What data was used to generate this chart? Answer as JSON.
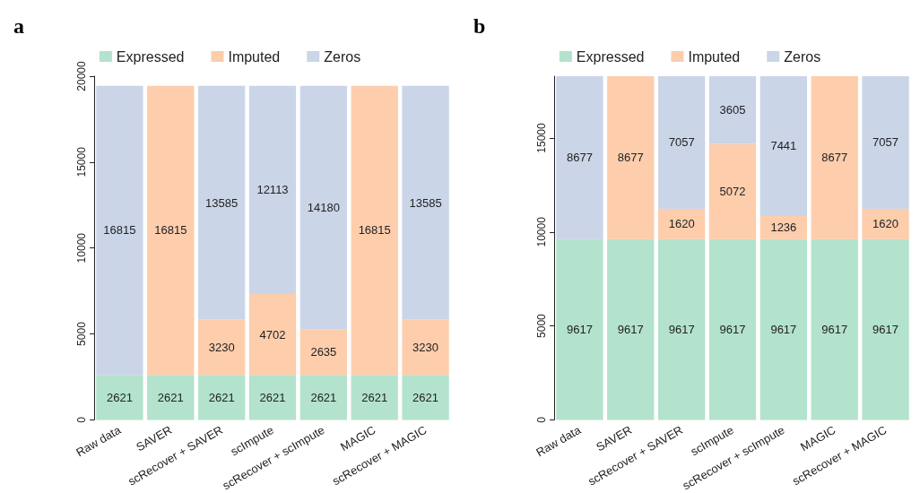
{
  "chart_data": [
    {
      "type": "bar",
      "title": "a",
      "stacked": true,
      "legend": "top",
      "categories": [
        "Raw data",
        "SAVER",
        "scRecover + SAVER",
        "scImpute",
        "scRecover + scImpute",
        "MAGIC",
        "scRecover + MAGIC"
      ],
      "ylim": [
        0,
        20000
      ],
      "yticks": [
        0,
        5000,
        10000,
        15000,
        20000
      ],
      "series": [
        {
          "name": "Expressed",
          "color": "#b3e2cd",
          "values": [
            2621,
            2621,
            2621,
            2621,
            2621,
            2621,
            2621
          ],
          "value_labels": [
            "2621",
            "2621",
            "2621",
            "2621",
            "2621",
            "2621",
            "2621"
          ]
        },
        {
          "name": "Imputed",
          "color": "#fdcdac",
          "values": [
            0,
            16815,
            3230,
            4702,
            2635,
            16815,
            3230
          ],
          "value_labels": [
            null,
            "16815",
            "3230",
            "4702",
            "2635",
            "16815",
            "3230"
          ]
        },
        {
          "name": "Zeros",
          "color": "#cbd5e8",
          "values": [
            16815,
            0,
            13585,
            12113,
            14180,
            0,
            13585
          ],
          "value_labels": [
            "16815",
            null,
            "13585",
            "12113",
            "14180",
            null,
            "13585"
          ]
        }
      ]
    },
    {
      "type": "bar",
      "title": "b",
      "stacked": true,
      "legend": "top",
      "categories": [
        "Raw data",
        "SAVER",
        "scRecover + SAVER",
        "scImpute",
        "scRecover + scImpute",
        "MAGIC",
        "scRecover + MAGIC"
      ],
      "ylim": [
        0,
        18294
      ],
      "yticks": [
        0,
        5000,
        10000,
        15000
      ],
      "series": [
        {
          "name": "Expressed",
          "color": "#b3e2cd",
          "values": [
            9617,
            9617,
            9617,
            9617,
            9617,
            9617,
            9617
          ],
          "value_labels": [
            "9617",
            "9617",
            "9617",
            "9617",
            "9617",
            "9617",
            "9617"
          ]
        },
        {
          "name": "Imputed",
          "color": "#fdcdac",
          "values": [
            0,
            8677,
            1620,
            5072,
            1236,
            8677,
            1620
          ],
          "value_labels": [
            null,
            "8677",
            "1620",
            "5072",
            "1236",
            "8677",
            "1620"
          ]
        },
        {
          "name": "Zeros",
          "color": "#cbd5e8",
          "values": [
            8677,
            0,
            7057,
            3605,
            7441,
            0,
            7057
          ],
          "value_labels": [
            "8677",
            null,
            "7057",
            "3605",
            "7441",
            null,
            "7057"
          ]
        }
      ]
    }
  ]
}
